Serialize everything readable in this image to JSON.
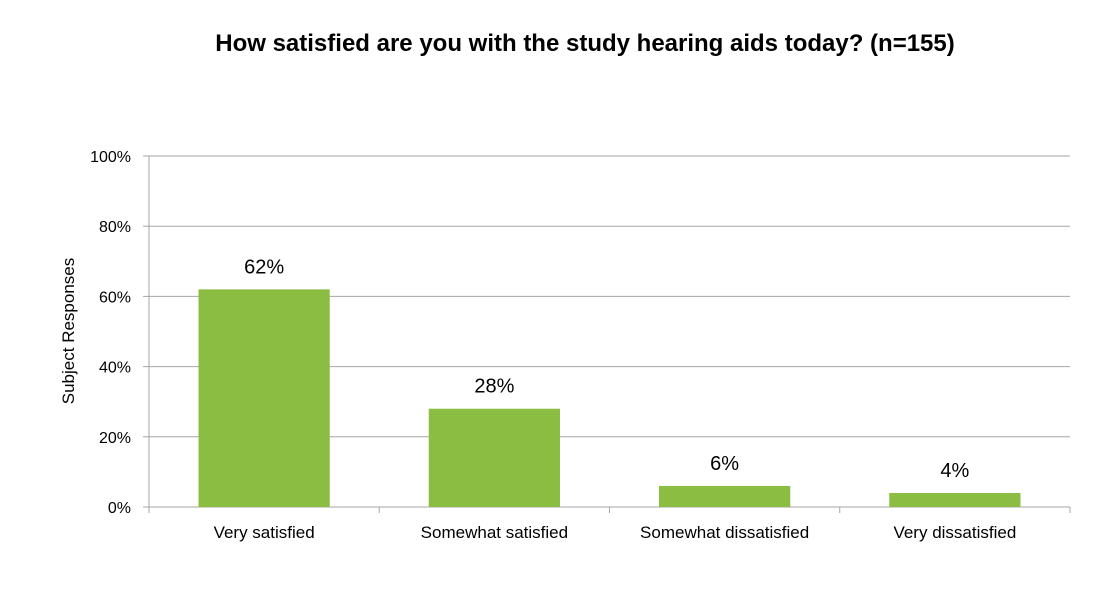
{
  "chart_data": {
    "type": "bar",
    "title": "How satisfied are you with the study hearing aids today? (n=155)",
    "xlabel": "",
    "ylabel": "Subject Responses",
    "categories": [
      "Very satisfied",
      "Somewhat satisfied",
      "Somewhat dissatisfied",
      "Very dissatisfied"
    ],
    "values": [
      62,
      28,
      6,
      4
    ],
    "data_labels": [
      "62%",
      "28%",
      "6%",
      "4%"
    ],
    "ylim": [
      0,
      100
    ],
    "yticks": [
      0,
      20,
      40,
      60,
      80,
      100
    ],
    "ytick_labels": [
      "0%",
      "20%",
      "40%",
      "60%",
      "80%",
      "100%"
    ],
    "grid": true,
    "legend": "none",
    "bar_color": "#8cbd43",
    "grid_color": "#a6a6a6"
  }
}
